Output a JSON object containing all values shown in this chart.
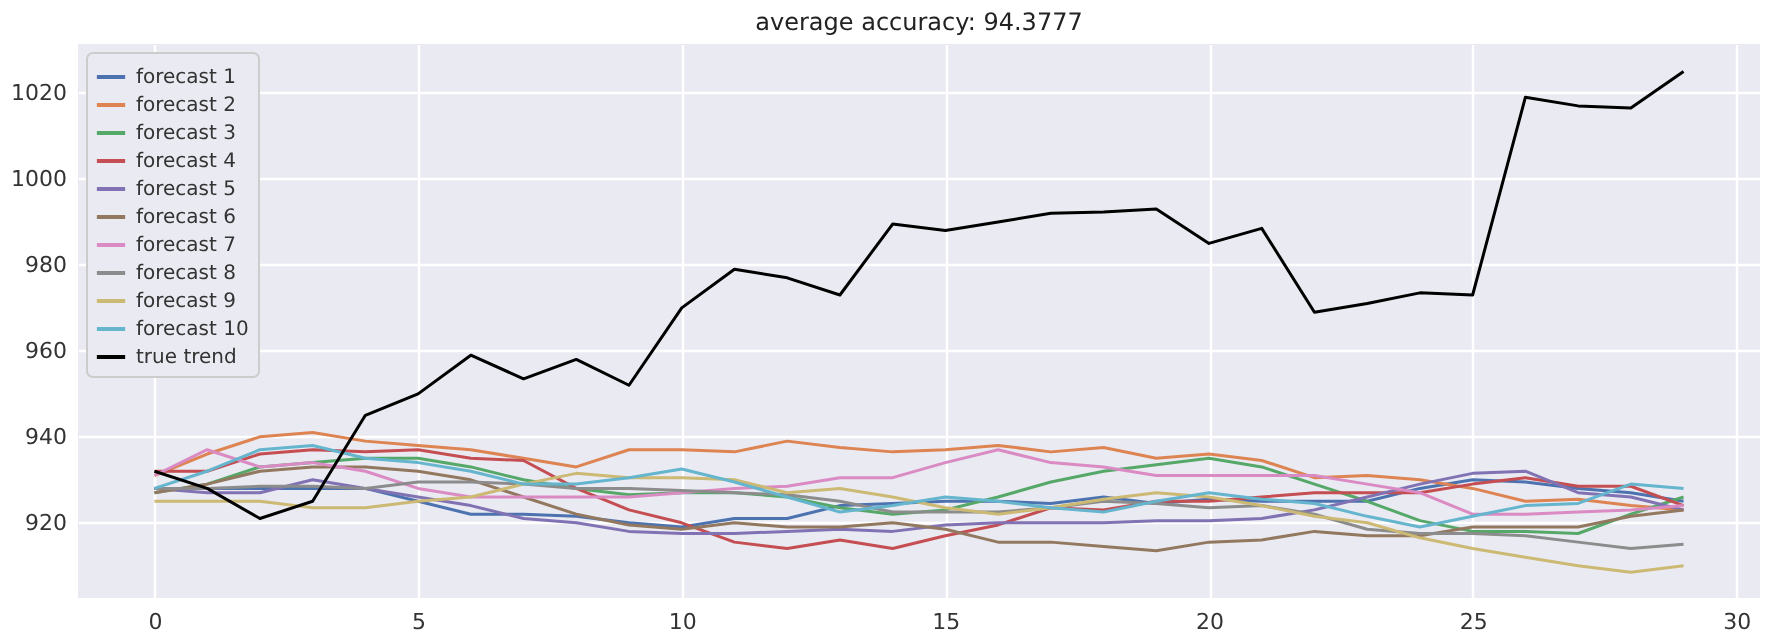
{
  "chart_data": {
    "type": "line",
    "title": "average accuracy: 94.3777",
    "x": [
      0,
      1,
      2,
      3,
      4,
      5,
      6,
      7,
      8,
      9,
      10,
      11,
      12,
      13,
      14,
      15,
      16,
      17,
      18,
      19,
      20,
      21,
      22,
      23,
      24,
      25,
      26,
      27,
      28,
      29
    ],
    "series": [
      {
        "name": "forecast 1",
        "color": "#4c72b0",
        "values": [
          928,
          928,
          928,
          928,
          928,
          925,
          922,
          922,
          921.5,
          920,
          919,
          921,
          921,
          924,
          924.5,
          925,
          925,
          924.5,
          926,
          924.5,
          925.5,
          925,
          925,
          925,
          928,
          930,
          929.5,
          928,
          927,
          925
        ]
      },
      {
        "name": "forecast 2",
        "color": "#dd8452",
        "values": [
          931,
          936,
          940,
          941,
          939,
          938,
          937,
          935,
          933,
          937,
          937,
          936.5,
          939,
          937.5,
          936.5,
          937,
          938,
          936.5,
          937.5,
          935,
          936,
          934.5,
          930.5,
          931,
          930,
          928,
          925,
          925.5,
          924,
          923
        ]
      },
      {
        "name": "forecast 3",
        "color": "#55a868",
        "values": [
          927,
          929,
          933,
          934,
          935,
          935,
          933,
          930,
          928,
          926.5,
          927,
          927,
          926,
          923.5,
          922,
          923,
          926,
          929.5,
          932,
          933.5,
          935,
          933,
          929,
          925,
          920.5,
          918,
          918,
          917.5,
          922,
          926
        ]
      },
      {
        "name": "forecast 4",
        "color": "#c44e52",
        "values": [
          932,
          932,
          936,
          937,
          936.5,
          937,
          935,
          934.5,
          928,
          923,
          920,
          915.5,
          914,
          916,
          914,
          917,
          919.5,
          923.5,
          923,
          925,
          925,
          926,
          927,
          927,
          927,
          929,
          930.5,
          928.5,
          928.5,
          924
        ]
      },
      {
        "name": "forecast 5",
        "color": "#8172b3",
        "values": [
          928,
          927,
          927,
          930,
          928,
          926,
          924,
          921,
          920,
          918,
          917.5,
          917.5,
          918,
          918.5,
          918,
          919.5,
          920,
          920,
          920,
          920.5,
          920.5,
          921,
          923,
          926,
          929,
          931.5,
          932,
          927,
          926,
          923
        ]
      },
      {
        "name": "forecast 6",
        "color": "#937860",
        "values": [
          927,
          929,
          932,
          933,
          933,
          932,
          930,
          926,
          922,
          919.5,
          918.5,
          920,
          919,
          919,
          920,
          918.5,
          915.5,
          915.5,
          914.5,
          913.5,
          915.5,
          916,
          918,
          917,
          917,
          919,
          919,
          919,
          921.5,
          923
        ]
      },
      {
        "name": "forecast 7",
        "color": "#da8bc3",
        "values": [
          931,
          937,
          933,
          934,
          932,
          928,
          926,
          926,
          926,
          926,
          927,
          928,
          928.5,
          930.5,
          930.5,
          934,
          937,
          934,
          933,
          931,
          931,
          931,
          931,
          929,
          927,
          922,
          922,
          922.5,
          923,
          924
        ]
      },
      {
        "name": "forecast 8",
        "color": "#8c8c8c",
        "values": [
          928,
          928,
          928.5,
          928.5,
          928,
          929.5,
          929.5,
          929,
          928,
          928,
          927.5,
          927,
          926.5,
          925,
          922.5,
          922.5,
          922.5,
          923.5,
          925,
          924.5,
          923.5,
          924,
          922,
          918.5,
          917.5,
          917.5,
          917,
          915.5,
          914,
          915
        ]
      },
      {
        "name": "forecast 9",
        "color": "#ccb974",
        "values": [
          925,
          925,
          925,
          923.5,
          923.5,
          925,
          926,
          929,
          931.5,
          930.5,
          930.5,
          930,
          927,
          928,
          926,
          923.5,
          922,
          923.5,
          925.5,
          927,
          926,
          924,
          921.5,
          920,
          916.5,
          914,
          912,
          910,
          908.5,
          910
        ]
      },
      {
        "name": "forecast 10",
        "color": "#64b5cd",
        "values": [
          928,
          932,
          937,
          938,
          935,
          934,
          932,
          929,
          929,
          930.5,
          932.5,
          929.5,
          926,
          922.5,
          924,
          926,
          925,
          923.5,
          922.5,
          925,
          927,
          925.5,
          924.5,
          921.5,
          919,
          921.5,
          924,
          924.5,
          929,
          928
        ]
      },
      {
        "name": "true trend",
        "color": "#000000",
        "values": [
          932,
          928,
          921,
          925,
          945,
          950,
          959,
          953.5,
          958,
          952,
          970,
          979,
          977,
          973,
          989.5,
          988,
          990,
          992,
          992.3,
          993,
          985,
          988.5,
          969,
          971,
          973.5,
          973,
          1019,
          1017,
          1016.5,
          1025
        ]
      }
    ],
    "xlim": [
      -1.45,
      30.45
    ],
    "ylim": [
      902.5,
      1031.4
    ],
    "xticks": [
      0,
      5,
      10,
      15,
      20,
      25,
      30
    ],
    "yticks": [
      920,
      940,
      960,
      980,
      1000,
      1020
    ],
    "grid": true,
    "legend": "top left"
  }
}
